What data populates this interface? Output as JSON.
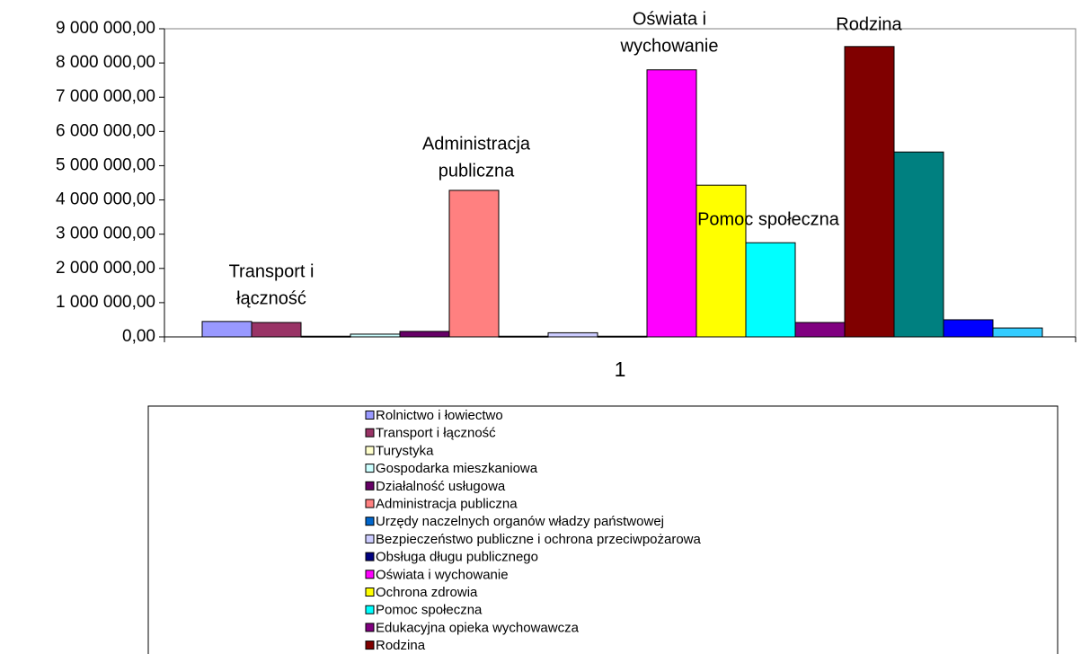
{
  "chart_data": {
    "type": "bar",
    "categories": [
      "1"
    ],
    "ylim": [
      0,
      9000000
    ],
    "yticks": [
      {
        "value": 0,
        "label": "0,00"
      },
      {
        "value": 1000000,
        "label": "1 000 000,00"
      },
      {
        "value": 2000000,
        "label": "2 000 000,00"
      },
      {
        "value": 3000000,
        "label": "3 000 000,00"
      },
      {
        "value": 4000000,
        "label": "4 000 000,00"
      },
      {
        "value": 5000000,
        "label": "5 000 000,00"
      },
      {
        "value": 6000000,
        "label": "6 000 000,00"
      },
      {
        "value": 7000000,
        "label": "7 000 000,00"
      },
      {
        "value": 8000000,
        "label": "8 000 000,00"
      },
      {
        "value": 9000000,
        "label": "9 000 000,00"
      }
    ],
    "series": [
      {
        "name": "Rolnictwo i łowiectwo",
        "color": "#9999ff",
        "values": [
          450000
        ]
      },
      {
        "name": "Transport i łączność",
        "color": "#993366",
        "values": [
          420000
        ]
      },
      {
        "name": "Turystyka",
        "color": "#ffffcc",
        "values": [
          20000
        ]
      },
      {
        "name": "Gospodarka mieszkaniowa",
        "color": "#ccffff",
        "values": [
          80000
        ]
      },
      {
        "name": "Działalność usługowa",
        "color": "#660066",
        "values": [
          160000
        ]
      },
      {
        "name": "Administracja publiczna",
        "color": "#ff8080",
        "values": [
          4280000
        ]
      },
      {
        "name": "Urzędy naczelnych organów władzy państwowej",
        "color": "#0066cc",
        "values": [
          20000
        ]
      },
      {
        "name": "Bezpieczeństwo publiczne i ochrona przeciwpożarowa",
        "color": "#ccccff",
        "values": [
          120000
        ]
      },
      {
        "name": "Obsługa długu publicznego",
        "color": "#000080",
        "values": [
          20000
        ]
      },
      {
        "name": "Oświata i wychowanie",
        "color": "#ff00ff",
        "values": [
          7800000
        ]
      },
      {
        "name": "Ochrona zdrowia",
        "color": "#ffff00",
        "values": [
          4430000
        ]
      },
      {
        "name": "Pomoc społeczna",
        "color": "#00ffff",
        "values": [
          2750000
        ]
      },
      {
        "name": " Edukacyjna opieka wychowawcza",
        "color": "#800080",
        "values": [
          420000
        ]
      },
      {
        "name": "Rodzina",
        "color": "#800000",
        "values": [
          8480000
        ]
      },
      {
        "name": null,
        "color": "#008080",
        "values": [
          5400000
        ]
      },
      {
        "name": null,
        "color": "#0000ff",
        "values": [
          500000
        ]
      },
      {
        "name": null,
        "color": "#33ccff",
        "values": [
          260000
        ]
      }
    ],
    "annotations": [
      {
        "lines": [
          "Transport i",
          "łączność"
        ]
      },
      {
        "lines": [
          "Administracja",
          "publiczna"
        ]
      },
      {
        "lines": [
          "Oświata i",
          "wychowanie"
        ]
      },
      {
        "lines": [
          "Pomoc  społeczna"
        ]
      },
      {
        "lines": [
          "Rodzina"
        ]
      }
    ]
  }
}
